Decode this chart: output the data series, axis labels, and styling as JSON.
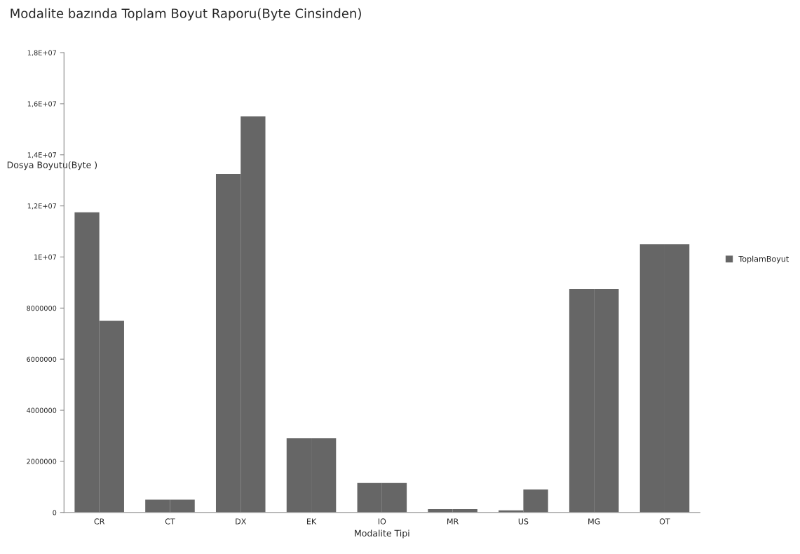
{
  "chart_data": {
    "type": "bar",
    "title": "Modalite bazında Toplam Boyut Raporu(Byte Cinsinden)",
    "xlabel": "Modalite Tipi",
    "ylabel": "Dosya Boyutu(Byte )",
    "categories": [
      "CR",
      "CT",
      "DX",
      "EK",
      "IO",
      "MR",
      "US",
      "MG",
      "OT"
    ],
    "series": [
      {
        "name": "ToplamBoyut",
        "color": "#666666",
        "values": [
          11750000,
          500000,
          13250000,
          2900000,
          1150000,
          130000,
          80000,
          8750000,
          10500000
        ]
      },
      {
        "color": "#666666",
        "values": [
          7500000,
          500000,
          15500000,
          2900000,
          1150000,
          130000,
          900000,
          8750000,
          10500000
        ]
      }
    ],
    "ylim": [
      0,
      18000000
    ],
    "yticks": [
      0,
      2000000,
      4000000,
      6000000,
      8000000,
      {
        "value": 10000000,
        "label": "1E+07"
      },
      {
        "value": 12000000,
        "label": "1,2E+07"
      },
      {
        "value": 14000000,
        "label": "1,4E+07"
      },
      {
        "value": 16000000,
        "label": "1,6E+07"
      },
      {
        "value": 18000000,
        "label": "1,8E+07"
      }
    ],
    "grid": false,
    "legend": "right"
  }
}
